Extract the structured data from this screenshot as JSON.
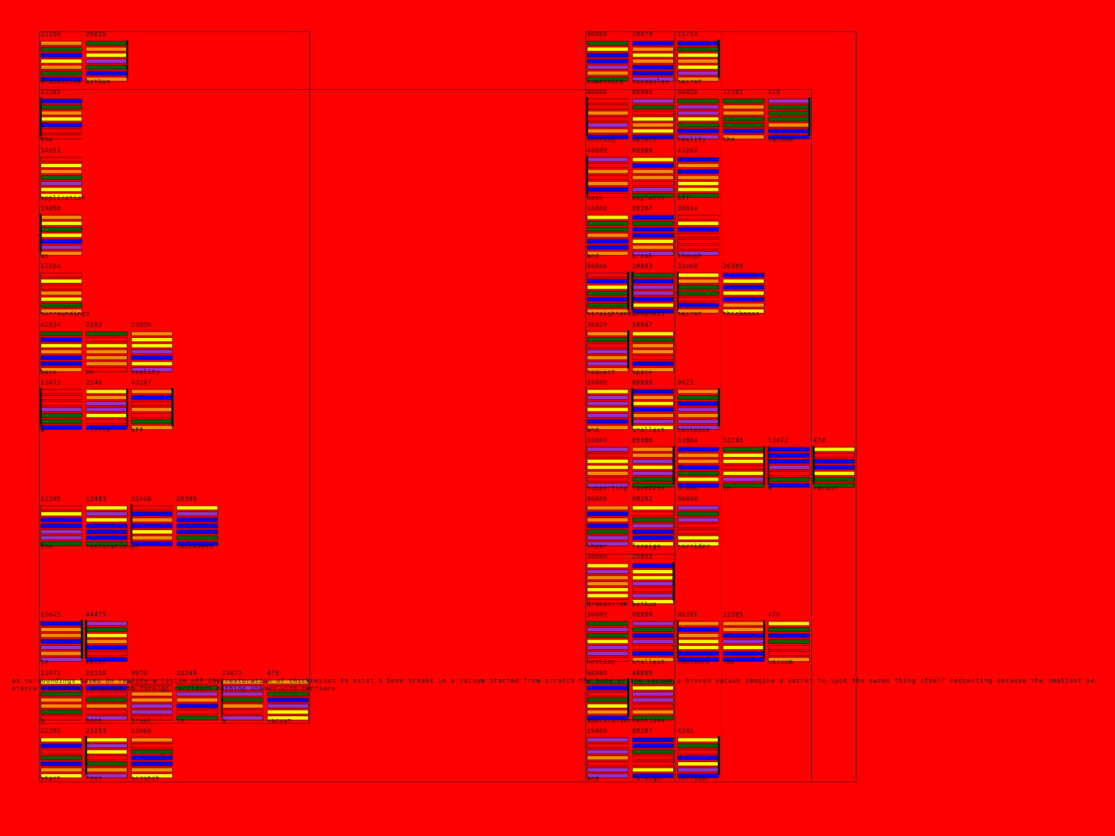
{
  "left": {
    "rows": [
      [
        {
          "number": "32156",
          "word": "drabasslek"
        },
        {
          "number": "25826",
          "word": "kotkus"
        }
      ],
      [
        {
          "number": "12385",
          "word": "the"
        }
      ],
      [
        {
          "number": "34651",
          "word": "application"
        }
      ],
      [
        {
          "number": "19898",
          "word": "as"
        }
      ],
      [
        {
          "number": "17554",
          "word": "surroundings"
        }
      ],
      [
        {
          "number": "42834",
          "word": "base"
        },
        {
          "number": "2282",
          "word": "on"
        },
        {
          "number": "23858",
          "word": "reality"
        }
      ],
      [
        {
          "number": "13873",
          "word": "a"
        },
        {
          "number": "2146",
          "word": "little"
        },
        {
          "number": "43287",
          "word": "off"
        }
      ],
      [
        {
          "number": "12385",
          "word": "the"
        },
        {
          "number": "12483",
          "word": "restoration"
        },
        {
          "number": "33468",
          "word": "of"
        },
        {
          "number": "26389",
          "word": "thickness"
        }
      ],
      [
        {
          "number": "15645",
          "word": "to"
        },
        {
          "number": "44475",
          "word": "exist"
        }
      ],
      [
        {
          "number": "13873",
          "word": "a"
        },
        {
          "number": "29336",
          "word": "bone"
        },
        {
          "number": "9978",
          "word": "break"
        },
        {
          "number": "32248",
          "word": "in"
        },
        {
          "number": "13873",
          "word": "a"
        },
        {
          "number": "478",
          "word": "vacuum"
        }
      ],
      [
        {
          "number": "22292",
          "word": "start"
        },
        {
          "number": "23253",
          "word": "from"
        },
        {
          "number": "12668",
          "word": "scratch"
        }
      ]
    ]
  },
  "right": {
    "rows": [
      [
        {
          "number": "88888",
          "word": "something"
        },
        {
          "number": "19879",
          "word": "monopoles"
        },
        {
          "number": "21754",
          "word": "secret"
        }
      ],
      [
        {
          "number": "88888",
          "word": "nothing"
        },
        {
          "number": "88886",
          "word": "object"
        },
        {
          "number": "88858",
          "word": "reality"
        },
        {
          "number": "12385",
          "word": "the"
        },
        {
          "number": "478",
          "word": "vacuum"
        }
      ],
      [
        {
          "number": "48889",
          "word": "both"
        },
        {
          "number": "88888",
          "word": "explains"
        },
        {
          "number": "43287",
          "word": "off"
        }
      ],
      [
        {
          "number": "18888",
          "word": "and"
        },
        {
          "number": "88287",
          "word": "break"
        },
        {
          "number": "88834",
          "word": "though"
        }
      ],
      [
        {
          "number": "88888",
          "word": "straightened"
        },
        {
          "number": "18883",
          "word": "deepness"
        },
        {
          "number": "33468",
          "word": "secret"
        },
        {
          "number": "26389",
          "word": "thickness"
        }
      ],
      [
        {
          "number": "38829",
          "word": "request"
        },
        {
          "number": "58847",
          "word": "space"
        }
      ],
      [
        {
          "number": "18889",
          "word": "and"
        },
        {
          "number": "88888",
          "word": "smallest"
        },
        {
          "number": "8623",
          "word": "sentence"
        }
      ],
      [
        {
          "number": "18888",
          "word": "supporting"
        },
        {
          "number": "88888",
          "word": "squeezes"
        },
        {
          "number": "53884",
          "word": "break"
        },
        {
          "number": "32248",
          "word": "in"
        },
        {
          "number": "13873",
          "word": "a"
        },
        {
          "number": "478",
          "word": "vacuum"
        }
      ],
      [
        {
          "number": "88888",
          "word": "sheer"
        },
        {
          "number": "88252",
          "word": "foreign"
        },
        {
          "number": "88888",
          "word": "corridor"
        }
      ],
      [
        {
          "number": "38888",
          "word": "drabasslek"
        },
        {
          "number": "25832",
          "word": "kotkus"
        }
      ],
      [
        {
          "number": "38889",
          "word": "nothing"
        },
        {
          "number": "88888",
          "word": "smallest"
        },
        {
          "number": "88281",
          "word": "sentence"
        },
        {
          "number": "12385",
          "word": "the"
        },
        {
          "number": "478",
          "word": "vacuum"
        }
      ],
      [
        {
          "number": "88889",
          "word": "application"
        },
        {
          "number": "48888",
          "word": "mentions"
        }
      ],
      [
        {
          "number": "19888",
          "word": "and"
        },
        {
          "number": "88287",
          "word": "foreign"
        },
        {
          "number": "4382",
          "word": "corridor"
        }
      ]
    ]
  },
  "palette": [
    "#0000ff",
    "#ffff00",
    "#ff8c00",
    "#006400",
    "#9932cc",
    "#ff0000"
  ],
  "overlay_text": "as surroundings based on reality a little off the restoration of thicknesses to exist a bone breaks in a vacuum started from scratch the bone or the vacuum a broken vacuum imagine a secret to spot the owned thing itself requesting because the smallest sentence supporting squeezes to foreign corridors nothing unkown with mentions"
}
